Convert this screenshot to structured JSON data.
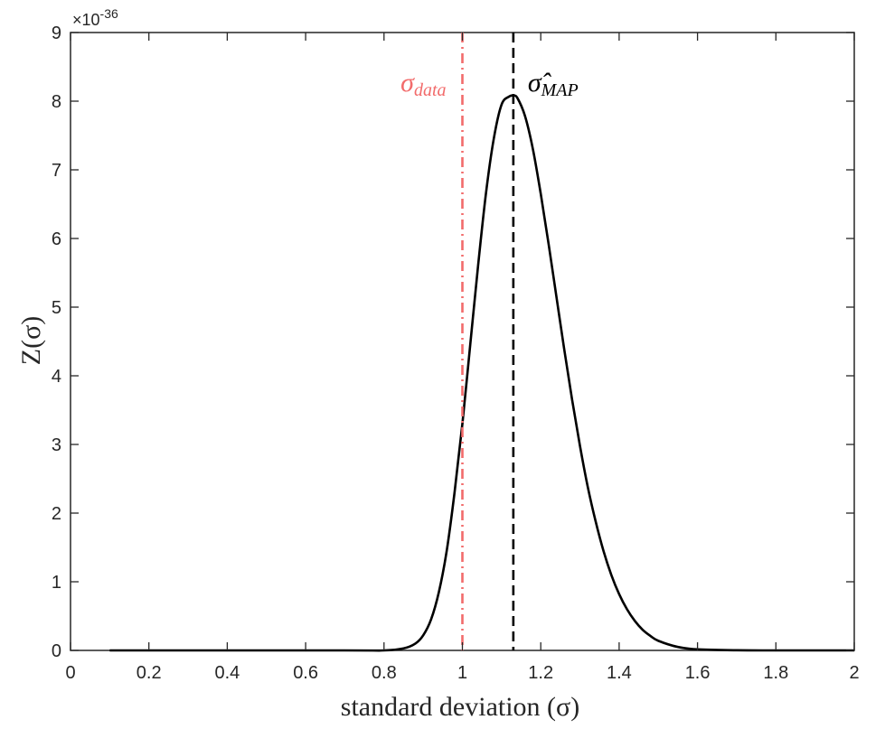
{
  "chart_data": {
    "type": "line",
    "xlabel": "standard deviation (σ)",
    "ylabel": "Z(σ)",
    "y_exponent": {
      "base": "×10",
      "power": "-36"
    },
    "xlim": [
      0,
      2
    ],
    "ylim": [
      0,
      9
    ],
    "x_ticks": [
      "0",
      "0.2",
      "0.4",
      "0.6",
      "0.8",
      "1",
      "1.2",
      "1.4",
      "1.6",
      "1.8",
      "2"
    ],
    "y_ticks": [
      "0",
      "1",
      "2",
      "3",
      "4",
      "5",
      "6",
      "7",
      "8",
      "9"
    ],
    "grid": false,
    "colors": {
      "curve": "#000000",
      "sigma_data_line": "#f26b6b",
      "map_line": "#000000"
    },
    "series": [
      {
        "style": "solid",
        "x": [
          0.1,
          0.7,
          0.8,
          0.85,
          0.88,
          0.9,
          0.92,
          0.94,
          0.96,
          0.98,
          1.0,
          1.02,
          1.04,
          1.06,
          1.08,
          1.1,
          1.12,
          1.13,
          1.14,
          1.16,
          1.18,
          1.2,
          1.22,
          1.24,
          1.26,
          1.28,
          1.3,
          1.32,
          1.34,
          1.36,
          1.38,
          1.4,
          1.42,
          1.44,
          1.46,
          1.48,
          1.5,
          1.55,
          1.6,
          1.7,
          1.8,
          2.0
        ],
        "y": [
          0.0,
          0.0,
          0.0,
          0.03,
          0.1,
          0.22,
          0.45,
          0.85,
          1.45,
          2.3,
          3.3,
          4.45,
          5.6,
          6.65,
          7.45,
          7.95,
          8.07,
          8.08,
          8.05,
          7.78,
          7.3,
          6.65,
          5.92,
          5.15,
          4.38,
          3.65,
          2.98,
          2.38,
          1.88,
          1.45,
          1.1,
          0.82,
          0.6,
          0.43,
          0.3,
          0.21,
          0.14,
          0.05,
          0.015,
          0.002,
          0.0,
          0.0
        ]
      }
    ],
    "vlines": [
      {
        "x": 1.0,
        "style": "dash-dot",
        "label_main": "σ",
        "label_sub": "data"
      },
      {
        "x": 1.13,
        "style": "dashed",
        "label_main": "σ̂",
        "label_sub": "MAP"
      }
    ]
  }
}
